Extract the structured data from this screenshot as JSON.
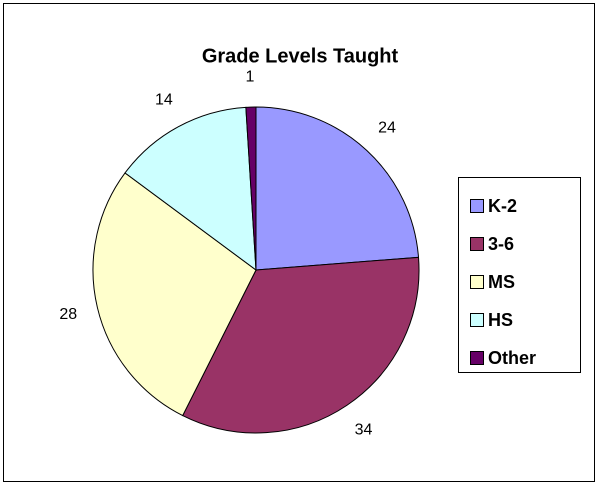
{
  "chart_data": {
    "type": "pie",
    "title": "Grade Levels Taught",
    "categories": [
      "K-2",
      "3-6",
      "MS",
      "HS",
      "Other"
    ],
    "values": [
      24,
      34,
      28,
      14,
      1
    ],
    "colors": [
      "#9999ff",
      "#993366",
      "#ffffcc",
      "#ccffff",
      "#660066"
    ],
    "legend": "right"
  }
}
